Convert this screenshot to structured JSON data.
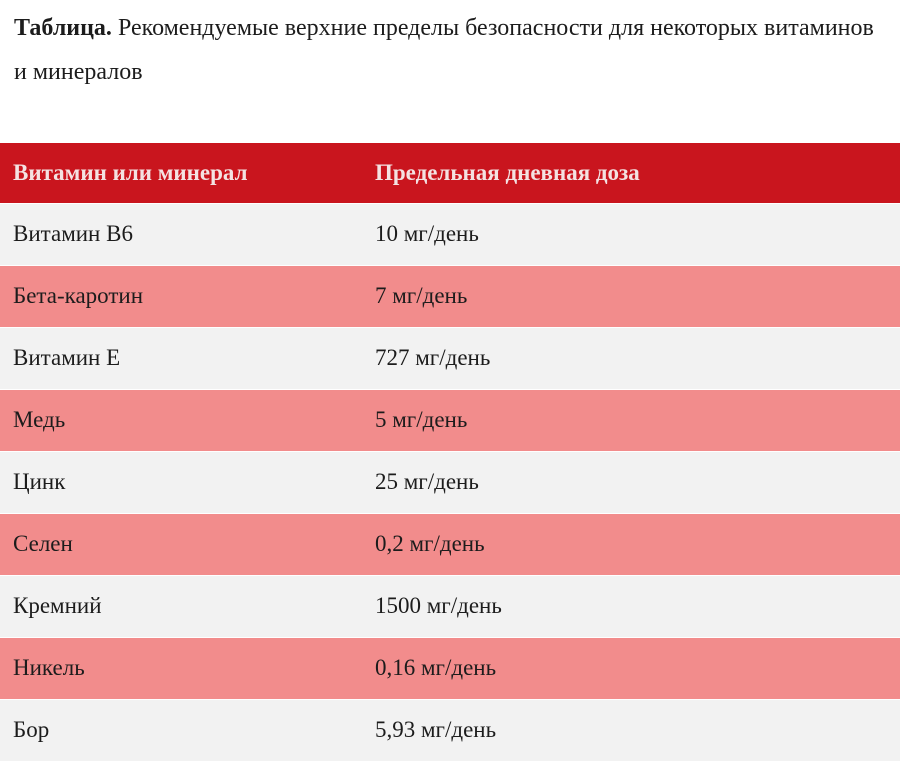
{
  "caption": {
    "lead": "Таблица.",
    "text": " Рекомендуемые верхние пределы безопасности для некоторых витаминов и минералов"
  },
  "table": {
    "headers": [
      "Витамин или минерал",
      "Предельная дневная доза"
    ],
    "rows": [
      [
        "Витамин В6",
        "10 мг/день"
      ],
      [
        "Бета-каротин",
        "7 мг/день"
      ],
      [
        "Витамин Е",
        "727 мг/день"
      ],
      [
        "Медь",
        "5 мг/день"
      ],
      [
        "Цинк",
        "25 мг/день"
      ],
      [
        "Селен",
        "0,2 мг/день"
      ],
      [
        "Кремний",
        "1500 мг/день"
      ],
      [
        "Никель",
        "0,16 мг/день"
      ],
      [
        "Бор",
        "5,93 мг/день"
      ]
    ]
  },
  "colors": {
    "header_background": "#c9151e",
    "row_light": "#f2f2f2",
    "row_pink": "#f28c8c"
  }
}
